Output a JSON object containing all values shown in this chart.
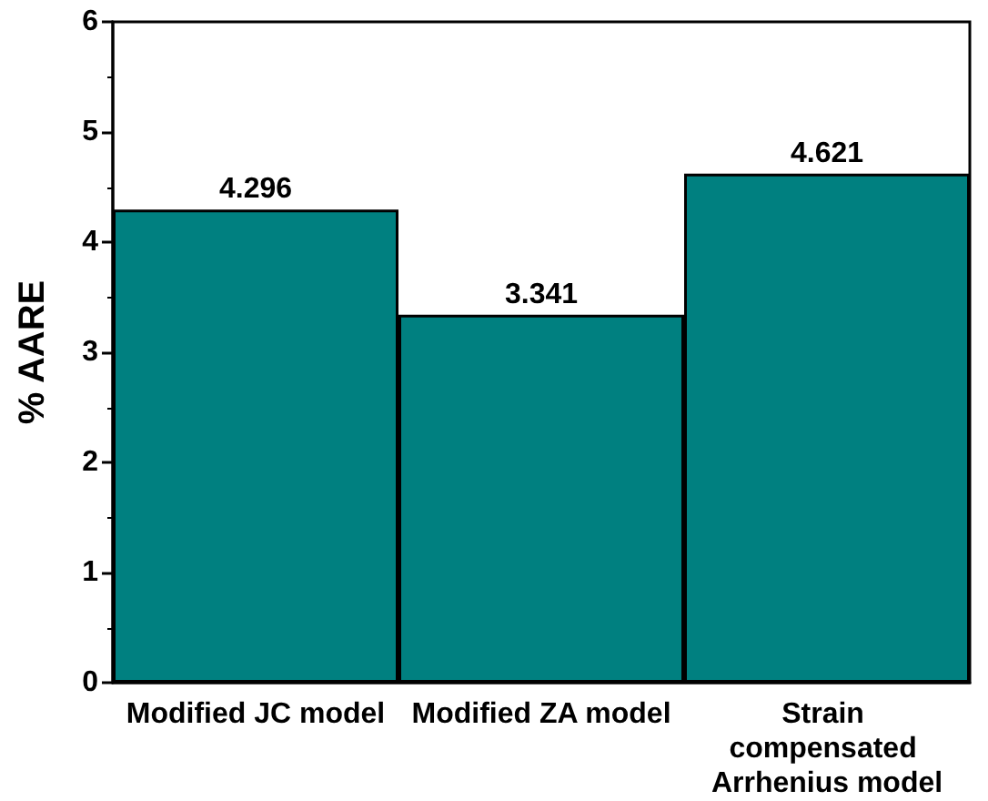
{
  "chart_data": {
    "type": "bar",
    "ylabel": "% AARE",
    "categories": [
      "Modified JC model",
      "Modified ZA model",
      "Strain compensated Arrhenius model"
    ],
    "values": [
      4.296,
      3.341,
      4.621
    ],
    "color": "#008080",
    "ylim": [
      0,
      6
    ],
    "yticks": [
      0,
      1,
      2,
      3,
      4,
      5,
      6
    ],
    "grid": false,
    "data_labels": true
  }
}
